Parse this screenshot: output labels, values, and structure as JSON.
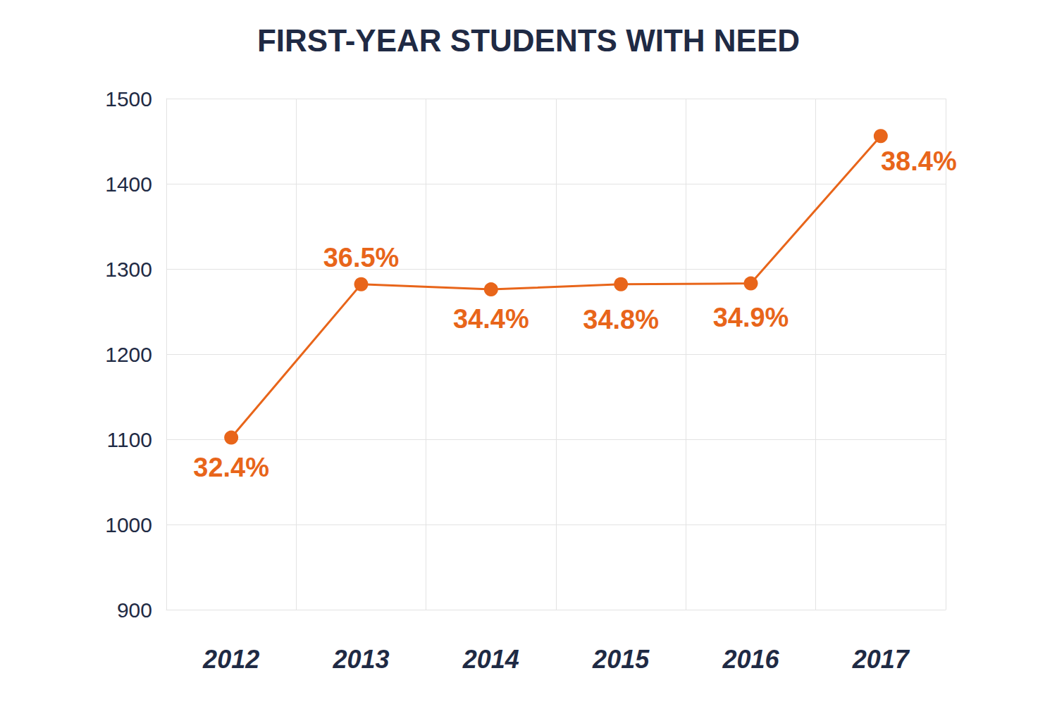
{
  "chart_data": {
    "type": "line",
    "title": "FIRST-YEAR STUDENTS WITH NEED",
    "categories": [
      "2012",
      "2013",
      "2014",
      "2015",
      "2016",
      "2017"
    ],
    "values": [
      1102,
      1282,
      1276,
      1282,
      1283,
      1456
    ],
    "annotations": [
      "32.4%",
      "36.5%",
      "34.4%",
      "34.8%",
      "34.9%",
      "38.4%"
    ],
    "color": "#e8651a",
    "marker": "circle",
    "ylim": [
      900,
      1500
    ],
    "yticks": [
      900,
      1000,
      1100,
      1200,
      1300,
      1400,
      1500
    ],
    "grid": true
  }
}
